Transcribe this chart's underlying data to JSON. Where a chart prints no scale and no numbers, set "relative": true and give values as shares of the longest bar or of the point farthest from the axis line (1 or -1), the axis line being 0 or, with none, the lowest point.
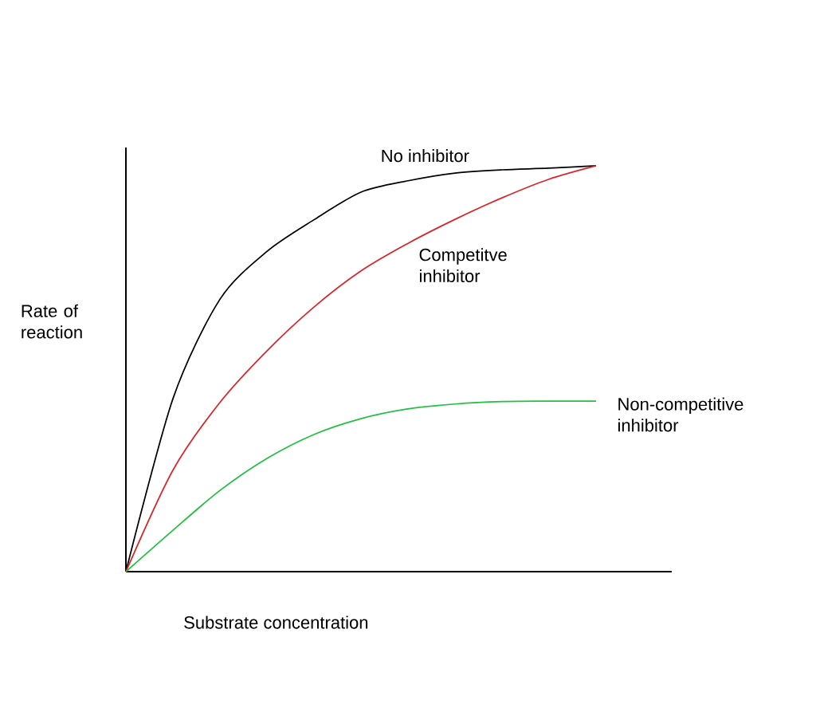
{
  "chart_data": {
    "type": "line",
    "relative": true,
    "xlabel": "Substrate concentration",
    "ylabel": "Rate of reaction",
    "categories": [
      null,
      null,
      null,
      null,
      null,
      null,
      null,
      null,
      null,
      null,
      null
    ],
    "series": [
      {
        "name": "No inhibitor",
        "color": "#000000",
        "values": [
          0,
          0.426,
          0.671,
          0.789,
          0.867,
          0.935,
          0.963,
          0.982,
          0.99,
          0.994,
          1
        ]
      },
      {
        "name": "Competitve inhibitor",
        "color": "#d9262c",
        "values": [
          0,
          0.25,
          0.417,
          0.544,
          0.652,
          0.741,
          0.809,
          0.868,
          0.921,
          0.967,
          1
        ]
      },
      {
        "name": "Non-competitive inhibitor",
        "color": "#22c040",
        "values": [
          0,
          0.102,
          0.2,
          0.279,
          0.338,
          0.377,
          0.401,
          0.413,
          0.419,
          0.42,
          0.42
        ]
      }
    ],
    "legend": false
  }
}
